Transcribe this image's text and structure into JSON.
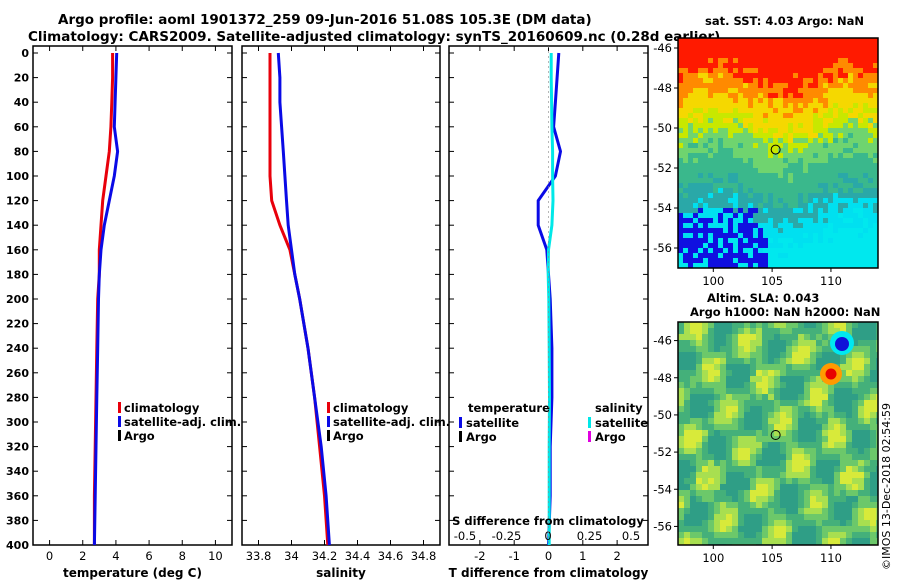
{
  "figure": {
    "title_line1": "Argo profile: aoml 1901372_259 09-Jun-2016 51.08S 105.3E (DM data)",
    "title_line2": "Climatology: CARS2009. Satellite-adjusted climatology: synTS_20160609.nc (0.28d earlier)",
    "stamp": "©IMOS 13-Dec-2018 02:54:59"
  },
  "colors": {
    "red": "#e8000b",
    "blue": "#0a0ae6",
    "cyan": "#00e8e8",
    "black": "#000000",
    "magenta": "#e000e0"
  },
  "chart_data": [
    {
      "type": "line",
      "title": "",
      "xlabel": "temperature (deg C)",
      "ylabel": "",
      "xlim": [
        -1,
        11
      ],
      "ylim": [
        400,
        0
      ],
      "xticks": [
        0,
        2,
        4,
        6,
        8,
        10
      ],
      "yticks": [
        0,
        20,
        40,
        60,
        80,
        100,
        120,
        140,
        160,
        180,
        200,
        220,
        240,
        260,
        280,
        300,
        320,
        340,
        360,
        380,
        400
      ],
      "legend": {
        "position": "right",
        "entries": [
          "climatology",
          "satellite-adj. clim.",
          "Argo"
        ]
      },
      "series": [
        {
          "name": "climatology",
          "color": "red",
          "x": [
            3.8,
            3.8,
            3.75,
            3.7,
            3.6,
            3.4,
            3.2,
            3.1,
            3.0,
            3.0,
            2.9,
            2.85,
            2.8,
            2.75,
            2.7,
            2.7
          ],
          "y": [
            0,
            20,
            40,
            60,
            80,
            100,
            120,
            140,
            160,
            180,
            200,
            240,
            280,
            320,
            360,
            400
          ]
        },
        {
          "name": "satellite-adj. clim.",
          "color": "blue",
          "x": [
            4.05,
            4.0,
            3.95,
            3.9,
            4.1,
            3.9,
            3.6,
            3.3,
            3.1,
            3.0,
            2.95,
            2.9,
            2.85,
            2.8,
            2.75,
            2.7
          ],
          "y": [
            0,
            20,
            40,
            60,
            80,
            100,
            120,
            140,
            160,
            180,
            200,
            240,
            280,
            320,
            360,
            400
          ]
        }
      ]
    },
    {
      "type": "line",
      "title": "",
      "xlabel": "salinity",
      "ylabel": "",
      "xlim": [
        33.7,
        34.9
      ],
      "ylim": [
        400,
        0
      ],
      "xticks": [
        33.8,
        34,
        34.2,
        34.4,
        34.6,
        34.8
      ],
      "xticklabels": [
        "33.8",
        "34",
        "34.2",
        "34.4",
        "34.6",
        "34.8"
      ],
      "legend": {
        "position": "right",
        "entries": [
          "climatology",
          "satellite-adj. clim.",
          "Argo"
        ]
      },
      "series": [
        {
          "name": "climatology",
          "color": "red",
          "x": [
            33.87,
            33.87,
            33.87,
            33.87,
            33.87,
            33.87,
            33.88,
            33.93,
            33.99,
            34.02,
            34.05,
            34.1,
            34.14,
            34.17,
            34.2,
            34.22
          ],
          "y": [
            0,
            20,
            40,
            60,
            80,
            100,
            120,
            140,
            160,
            180,
            200,
            240,
            280,
            320,
            360,
            400
          ]
        },
        {
          "name": "satellite-adj. clim.",
          "color": "blue",
          "x": [
            33.92,
            33.93,
            33.93,
            33.94,
            33.95,
            33.96,
            33.97,
            33.98,
            34.0,
            34.02,
            34.05,
            34.1,
            34.14,
            34.18,
            34.21,
            34.23
          ],
          "y": [
            0,
            20,
            40,
            60,
            80,
            100,
            120,
            140,
            160,
            180,
            200,
            240,
            280,
            320,
            360,
            400
          ]
        }
      ]
    },
    {
      "type": "line",
      "title": "",
      "xlabel": "T difference from climatology",
      "ylabel": "",
      "xlim": [
        -2.9,
        2.9
      ],
      "ylim": [
        400,
        0
      ],
      "xticks": [
        -2,
        -1,
        0,
        1,
        2
      ],
      "xticklabels": [
        "-2",
        "-1",
        "0",
        "1",
        "2"
      ],
      "secondary_axis": {
        "label": "S difference from climatology",
        "ticks": [
          -0.5,
          -0.25,
          0,
          0.25,
          0.5
        ],
        "ticklabels": [
          "-0.5",
          "-0.25",
          "0",
          "0.25",
          "0.5"
        ]
      },
      "legend": {
        "position": "right",
        "entries": [
          "temperature",
          "satellite",
          "Argo",
          "salinity",
          "satellite",
          "Argo"
        ]
      },
      "series": [
        {
          "name": "temperature satellite",
          "color": "blue",
          "x": [
            0.3,
            0.25,
            0.2,
            0.15,
            0.35,
            0.2,
            -0.3,
            -0.3,
            -0.05,
            0.0,
            0.05,
            0.1,
            0.1,
            0.05,
            0.05,
            0.0
          ],
          "y": [
            0,
            20,
            40,
            60,
            80,
            100,
            120,
            140,
            160,
            180,
            200,
            240,
            280,
            320,
            360,
            400
          ]
        },
        {
          "name": "salinity satellite",
          "color": "cyan",
          "x": [
            0.08,
            0.08,
            0.09,
            0.1,
            0.12,
            0.12,
            0.13,
            0.1,
            0.0,
            -0.01,
            0.01,
            0.02,
            0.03,
            0.02,
            0.02,
            0.02
          ],
          "y": [
            0,
            20,
            40,
            60,
            80,
            100,
            120,
            140,
            160,
            180,
            200,
            240,
            280,
            320,
            360,
            400
          ]
        }
      ]
    },
    {
      "type": "heatmap",
      "title": "sat. SST: 4.03 Argo: NaN",
      "xlim": [
        97,
        114
      ],
      "ylim": [
        -57,
        -45.5
      ],
      "xticks": [
        100,
        105,
        110
      ],
      "yticks": [
        -46,
        -48,
        -50,
        -52,
        -54,
        -56
      ],
      "marker": {
        "lon": 105.3,
        "lat": -51.08
      }
    },
    {
      "type": "heatmap",
      "title": "Altim. SLA: 0.043",
      "subtitle": "Argo h1000: NaN h2000: NaN",
      "xlim": [
        97,
        114
      ],
      "ylim": [
        -57,
        -45
      ],
      "xticks": [
        100,
        105,
        110
      ],
      "yticks": [
        -46,
        -48,
        -50,
        -52,
        -54,
        -56
      ],
      "marker": {
        "lon": 105.3,
        "lat": -51.08
      }
    }
  ]
}
